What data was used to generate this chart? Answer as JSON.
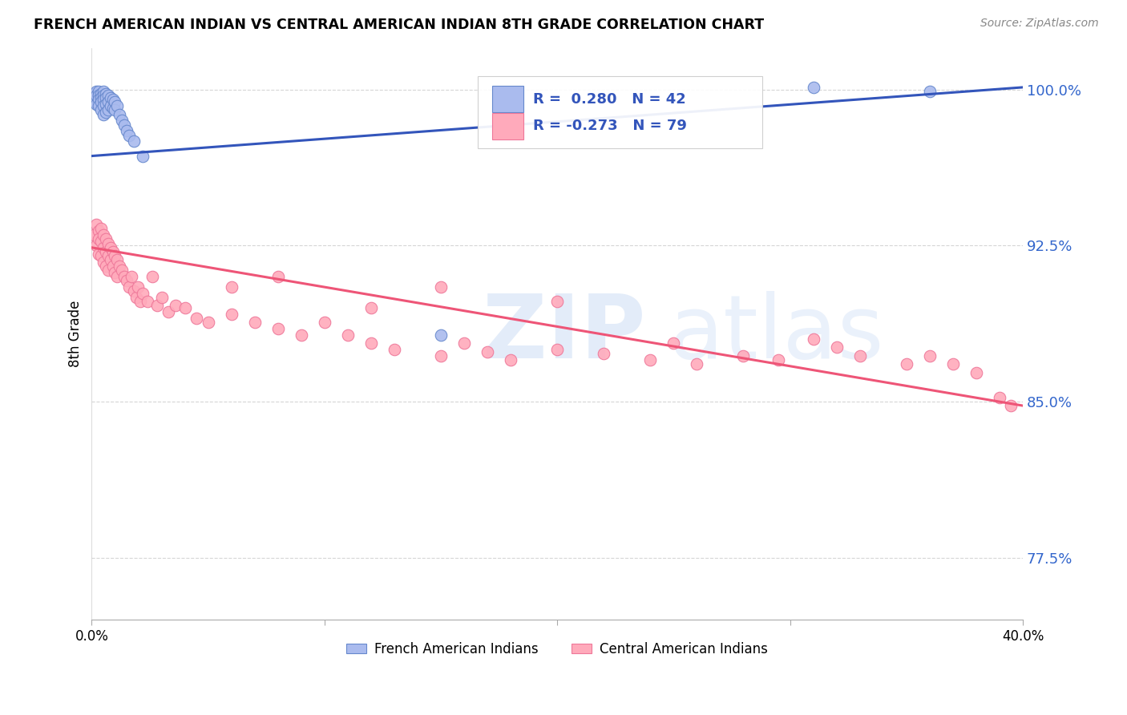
{
  "title": "FRENCH AMERICAN INDIAN VS CENTRAL AMERICAN INDIAN 8TH GRADE CORRELATION CHART",
  "source": "Source: ZipAtlas.com",
  "ylabel": "8th Grade",
  "ytick_labels": [
    "77.5%",
    "85.0%",
    "92.5%",
    "100.0%"
  ],
  "ytick_values": [
    0.775,
    0.85,
    0.925,
    1.0
  ],
  "xlim": [
    0.0,
    0.4
  ],
  "ylim": [
    0.745,
    1.02
  ],
  "blue_R": 0.28,
  "blue_N": 42,
  "pink_R": -0.273,
  "pink_N": 79,
  "blue_dot_color": "#AABBEE",
  "blue_edge_color": "#6688CC",
  "pink_dot_color": "#FFAABB",
  "pink_edge_color": "#EE7799",
  "blue_line_color": "#3355BB",
  "pink_line_color": "#EE5577",
  "legend_blue_label": "French American Indians",
  "legend_pink_label": "Central American Indians",
  "blue_trend_x": [
    0.0,
    0.4
  ],
  "blue_trend_y": [
    0.968,
    1.001
  ],
  "pink_trend_x": [
    0.0,
    0.4
  ],
  "pink_trend_y": [
    0.924,
    0.848
  ],
  "blue_scatter_x": [
    0.001,
    0.001,
    0.002,
    0.002,
    0.002,
    0.003,
    0.003,
    0.003,
    0.003,
    0.004,
    0.004,
    0.004,
    0.004,
    0.005,
    0.005,
    0.005,
    0.005,
    0.005,
    0.006,
    0.006,
    0.006,
    0.006,
    0.007,
    0.007,
    0.007,
    0.008,
    0.008,
    0.009,
    0.009,
    0.01,
    0.01,
    0.011,
    0.012,
    0.013,
    0.014,
    0.015,
    0.016,
    0.018,
    0.022,
    0.15,
    0.31,
    0.36
  ],
  "blue_scatter_y": [
    0.998,
    0.994,
    0.999,
    0.997,
    0.993,
    0.999,
    0.997,
    0.995,
    0.992,
    0.998,
    0.996,
    0.994,
    0.99,
    0.999,
    0.997,
    0.995,
    0.992,
    0.988,
    0.998,
    0.996,
    0.993,
    0.989,
    0.997,
    0.994,
    0.99,
    0.996,
    0.992,
    0.995,
    0.991,
    0.994,
    0.99,
    0.992,
    0.988,
    0.985,
    0.983,
    0.98,
    0.978,
    0.975,
    0.968,
    0.882,
    1.001,
    0.999
  ],
  "pink_scatter_x": [
    0.001,
    0.002,
    0.002,
    0.003,
    0.003,
    0.003,
    0.004,
    0.004,
    0.004,
    0.005,
    0.005,
    0.005,
    0.006,
    0.006,
    0.006,
    0.007,
    0.007,
    0.007,
    0.008,
    0.008,
    0.009,
    0.009,
    0.01,
    0.01,
    0.011,
    0.011,
    0.012,
    0.013,
    0.014,
    0.015,
    0.016,
    0.017,
    0.018,
    0.019,
    0.02,
    0.021,
    0.022,
    0.024,
    0.026,
    0.028,
    0.03,
    0.033,
    0.036,
    0.04,
    0.045,
    0.05,
    0.06,
    0.07,
    0.08,
    0.09,
    0.1,
    0.11,
    0.12,
    0.13,
    0.15,
    0.16,
    0.17,
    0.18,
    0.2,
    0.22,
    0.24,
    0.26,
    0.28,
    0.295,
    0.31,
    0.32,
    0.33,
    0.35,
    0.36,
    0.37,
    0.38,
    0.39,
    0.395,
    0.06,
    0.08,
    0.12,
    0.15,
    0.2,
    0.25
  ],
  "pink_scatter_y": [
    0.93,
    0.935,
    0.925,
    0.932,
    0.928,
    0.921,
    0.933,
    0.927,
    0.92,
    0.93,
    0.924,
    0.917,
    0.928,
    0.922,
    0.915,
    0.926,
    0.92,
    0.913,
    0.924,
    0.918,
    0.922,
    0.915,
    0.92,
    0.912,
    0.918,
    0.91,
    0.915,
    0.913,
    0.91,
    0.908,
    0.905,
    0.91,
    0.903,
    0.9,
    0.905,
    0.898,
    0.902,
    0.898,
    0.91,
    0.896,
    0.9,
    0.893,
    0.896,
    0.895,
    0.89,
    0.888,
    0.892,
    0.888,
    0.885,
    0.882,
    0.888,
    0.882,
    0.878,
    0.875,
    0.872,
    0.878,
    0.874,
    0.87,
    0.875,
    0.873,
    0.87,
    0.868,
    0.872,
    0.87,
    0.88,
    0.876,
    0.872,
    0.868,
    0.872,
    0.868,
    0.864,
    0.852,
    0.848,
    0.905,
    0.91,
    0.895,
    0.905,
    0.898,
    0.878
  ]
}
